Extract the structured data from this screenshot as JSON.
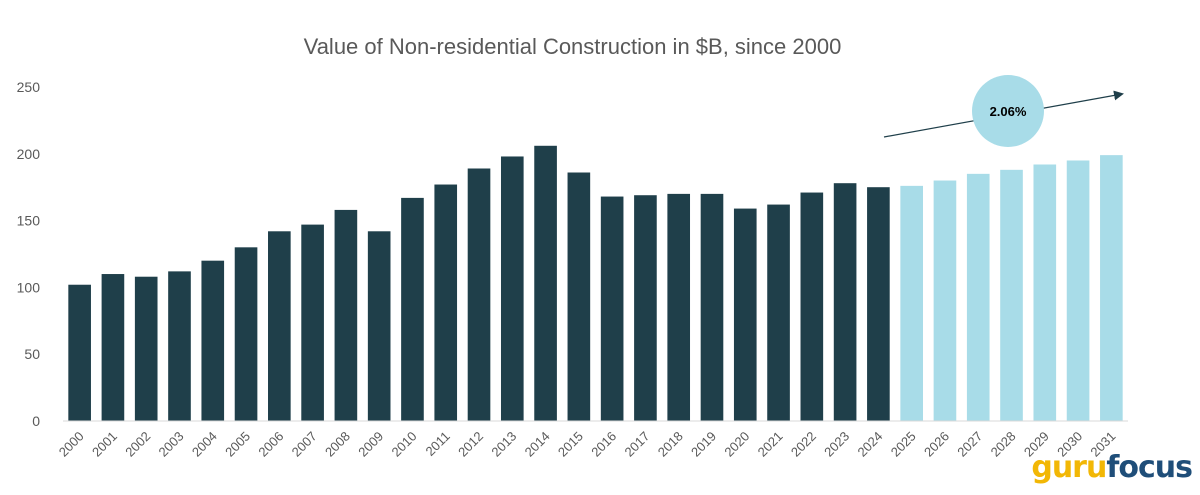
{
  "chart_data": {
    "type": "bar",
    "title": "Value of Non-residential Construction in $B, since 2000",
    "xlabel": "",
    "ylabel": "",
    "ylim": [
      0,
      250
    ],
    "yticks": [
      0,
      50,
      100,
      150,
      200,
      250
    ],
    "grid": false,
    "categories": [
      "2000",
      "2001",
      "2002",
      "2003",
      "2004",
      "2005",
      "2006",
      "2007",
      "2008",
      "2009",
      "2010",
      "2011",
      "2012",
      "2013",
      "2014",
      "2015",
      "2016",
      "2017",
      "2018",
      "2019",
      "2020",
      "2021",
      "2022",
      "2023",
      "2024",
      "2025",
      "2026",
      "2027",
      "2028",
      "2029",
      "2030",
      "2031"
    ],
    "values": [
      102,
      110,
      108,
      112,
      120,
      130,
      142,
      147,
      158,
      142,
      167,
      177,
      189,
      198,
      206,
      186,
      168,
      169,
      170,
      170,
      159,
      162,
      171,
      178,
      175,
      176,
      180,
      185,
      188,
      192,
      195,
      199
    ],
    "actual_color": "#1f3f4a",
    "forecast_color": "#a8dce8",
    "forecast_start": "2025",
    "annotation": {
      "label": "2.06%",
      "bubble_color": "#a8dce8",
      "arrow_color": "#1f3f4a"
    }
  },
  "watermark": {
    "part1": "guru",
    "part2": "focus"
  }
}
